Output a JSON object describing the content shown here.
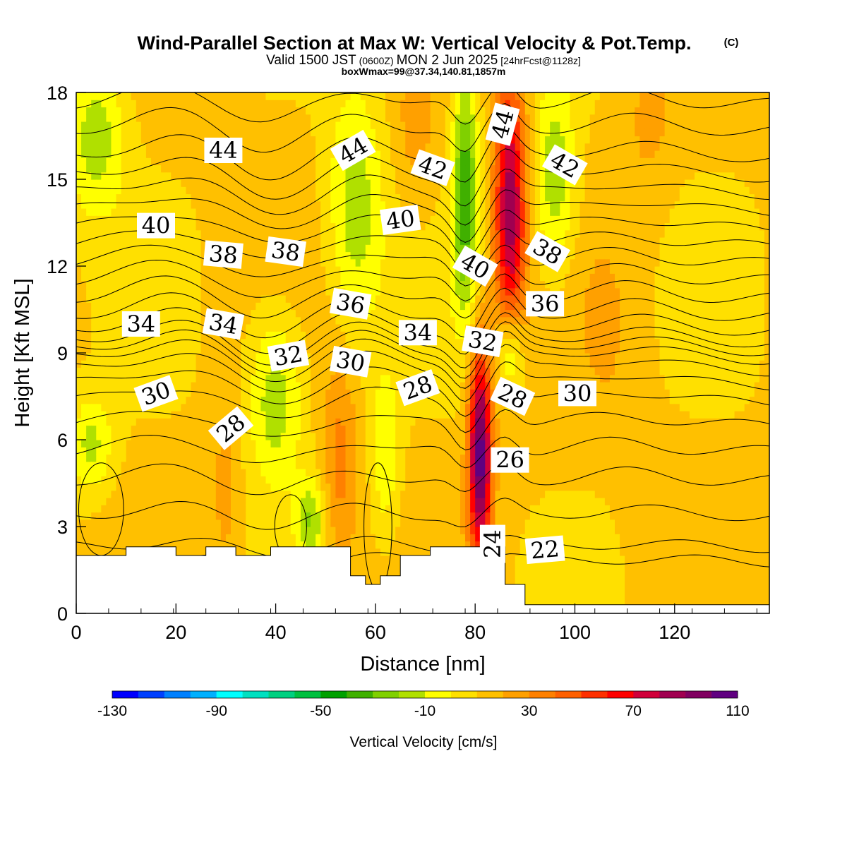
{
  "chart_data": {
    "type": "heatmap",
    "title": "Wind-Parallel Section at Max W: Vertical Velocity & Pot.Temp.",
    "title_suffix": "(C)",
    "subtitle_parts": [
      "Valid 1500 JST",
      "(0600Z)",
      "MON 2 Jun 2025",
      "[24hrFcst@1128z]"
    ],
    "info_line": "boxWmax=99@37.34,140.81,1857m",
    "xlabel": "Distance [nm]",
    "ylabel": "Height [Kft MSL]",
    "xlim": [
      0,
      139
    ],
    "ylim": [
      0,
      18
    ],
    "x_ticks": [
      0,
      20,
      40,
      60,
      80,
      100,
      120
    ],
    "y_ticks": [
      0,
      3,
      6,
      9,
      12,
      15,
      18
    ],
    "x_minor_step": 6.5,
    "colorbar": {
      "title": "Vertical Velocity [cm/s]",
      "labels": [
        "-130",
        "-90",
        "-50",
        "-10",
        "30",
        "70",
        "110"
      ],
      "min": -130,
      "step": 10,
      "colors": [
        "#0000ff",
        "#0040ff",
        "#0080ff",
        "#00b0ff",
        "#00ffff",
        "#00e0c0",
        "#00d080",
        "#00c040",
        "#00a000",
        "#40b000",
        "#80d000",
        "#b0e000",
        "#ffff00",
        "#ffe000",
        "#ffc000",
        "#ffa000",
        "#ff8000",
        "#ff6000",
        "#ff3000",
        "#ff0000",
        "#d0003a",
        "#a00050",
        "#800060",
        "#600080"
      ]
    },
    "terrain_kft": [
      [
        0,
        2.0
      ],
      [
        10,
        2.0
      ],
      [
        10,
        2.3
      ],
      [
        20,
        2.3
      ],
      [
        20,
        2.0
      ],
      [
        26,
        2.0
      ],
      [
        26,
        2.3
      ],
      [
        32,
        2.3
      ],
      [
        32,
        2.0
      ],
      [
        39,
        2.0
      ],
      [
        39,
        2.3
      ],
      [
        55,
        2.3
      ],
      [
        55,
        1.3
      ],
      [
        58,
        1.3
      ],
      [
        58,
        1.0
      ],
      [
        61,
        1.0
      ],
      [
        61,
        1.3
      ],
      [
        65,
        1.3
      ],
      [
        65,
        2.0
      ],
      [
        71,
        2.0
      ],
      [
        71,
        2.3
      ],
      [
        86,
        2.3
      ],
      [
        86,
        1.0
      ],
      [
        90,
        1.0
      ],
      [
        90,
        0.3
      ],
      [
        139,
        0.3
      ]
    ],
    "theta_contours": {
      "levels": [
        22,
        23,
        24,
        25,
        26,
        27,
        28,
        29,
        30,
        31,
        32,
        33,
        34,
        35,
        36,
        37,
        38,
        39,
        40,
        41,
        42,
        43,
        44,
        45,
        46
      ],
      "base_heights_kft": [
        1.8,
        2.3,
        3.4,
        4.6,
        5.6,
        6.5,
        7.3,
        7.9,
        8.4,
        8.8,
        9.1,
        9.4,
        9.8,
        10.3,
        10.9,
        11.5,
        12.1,
        12.7,
        13.3,
        13.9,
        14.5,
        15.1,
        15.8,
        16.7,
        17.6
      ]
    },
    "velocity_features": [
      {
        "x": 81,
        "y": 5.5,
        "sx": 1.6,
        "sy": 2.6,
        "w": 95
      },
      {
        "x": 87,
        "y": 14.0,
        "sx": 2.2,
        "sy": 3.2,
        "w": 75
      },
      {
        "x": 78,
        "y": 14.5,
        "sx": 1.8,
        "sy": 3.0,
        "w": -48
      },
      {
        "x": 87,
        "y": 9.0,
        "sx": 2.0,
        "sy": 1.2,
        "w": -35
      },
      {
        "x": 96,
        "y": 15.0,
        "sx": 3.0,
        "sy": 2.4,
        "w": -30
      },
      {
        "x": 56,
        "y": 14.0,
        "sx": 4.0,
        "sy": 3.0,
        "w": -28
      },
      {
        "x": 40,
        "y": 7.5,
        "sx": 4.0,
        "sy": 2.2,
        "w": -30
      },
      {
        "x": 4,
        "y": 16.5,
        "sx": 4.0,
        "sy": 2.0,
        "w": -28
      },
      {
        "x": 3,
        "y": 5.8,
        "sx": 3.0,
        "sy": 1.2,
        "w": -25
      },
      {
        "x": 62,
        "y": 5.5,
        "sx": 2.0,
        "sy": 2.0,
        "w": -22
      },
      {
        "x": 47,
        "y": 3.2,
        "sx": 2.0,
        "sy": 1.0,
        "w": -30
      },
      {
        "x": 53,
        "y": 5.2,
        "sx": 2.5,
        "sy": 2.5,
        "w": 22
      },
      {
        "x": 30,
        "y": 4.5,
        "sx": 2.0,
        "sy": 2.5,
        "w": 12
      },
      {
        "x": 68,
        "y": 16.5,
        "sx": 3.0,
        "sy": 2.0,
        "w": 12
      },
      {
        "x": 115,
        "y": 17.0,
        "sx": 3.0,
        "sy": 1.6,
        "w": 12
      },
      {
        "x": 106,
        "y": 10.0,
        "sx": 2.5,
        "sy": 1.5,
        "w": 12
      }
    ],
    "contour_labels": [
      {
        "text": "44",
        "x": 29.5,
        "y": 16.0,
        "rot": 0
      },
      {
        "text": "44",
        "x": 55.5,
        "y": 16.0,
        "rot": -30
      },
      {
        "text": "44",
        "x": 85.5,
        "y": 16.9,
        "rot": -75
      },
      {
        "text": "42",
        "x": 71.5,
        "y": 15.4,
        "rot": 20
      },
      {
        "text": "42",
        "x": 98,
        "y": 15.5,
        "rot": 30
      },
      {
        "text": "40",
        "x": 16,
        "y": 13.4,
        "rot": 0
      },
      {
        "text": "40",
        "x": 65,
        "y": 13.6,
        "rot": -8
      },
      {
        "text": "40",
        "x": 80,
        "y": 12.0,
        "rot": 30
      },
      {
        "text": "38",
        "x": 29.5,
        "y": 12.4,
        "rot": 5
      },
      {
        "text": "38",
        "x": 42,
        "y": 12.5,
        "rot": 8
      },
      {
        "text": "38",
        "x": 94.5,
        "y": 12.5,
        "rot": 30
      },
      {
        "text": "36",
        "x": 55,
        "y": 10.7,
        "rot": 10
      },
      {
        "text": "36",
        "x": 94,
        "y": 10.7,
        "rot": 0
      },
      {
        "text": "34",
        "x": 13,
        "y": 10.0,
        "rot": 0
      },
      {
        "text": "34",
        "x": 29.5,
        "y": 10.0,
        "rot": 10
      },
      {
        "text": "34",
        "x": 68.5,
        "y": 9.7,
        "rot": 0
      },
      {
        "text": "32",
        "x": 42.5,
        "y": 8.9,
        "rot": -10
      },
      {
        "text": "32",
        "x": 81.5,
        "y": 9.4,
        "rot": 10
      },
      {
        "text": "30",
        "x": 16,
        "y": 7.6,
        "rot": -20
      },
      {
        "text": "30",
        "x": 55,
        "y": 8.7,
        "rot": 10
      },
      {
        "text": "30",
        "x": 100.5,
        "y": 7.6,
        "rot": 0
      },
      {
        "text": "28",
        "x": 31,
        "y": 6.4,
        "rot": -40
      },
      {
        "text": "28",
        "x": 68.5,
        "y": 7.8,
        "rot": -20
      },
      {
        "text": "28",
        "x": 87.5,
        "y": 7.5,
        "rot": 25
      },
      {
        "text": "26",
        "x": 87,
        "y": 5.3,
        "rot": 0
      },
      {
        "text": "24",
        "x": 83.5,
        "y": 2.4,
        "rot": -90
      },
      {
        "text": "22",
        "x": 94,
        "y": 2.2,
        "rot": -5
      }
    ]
  }
}
